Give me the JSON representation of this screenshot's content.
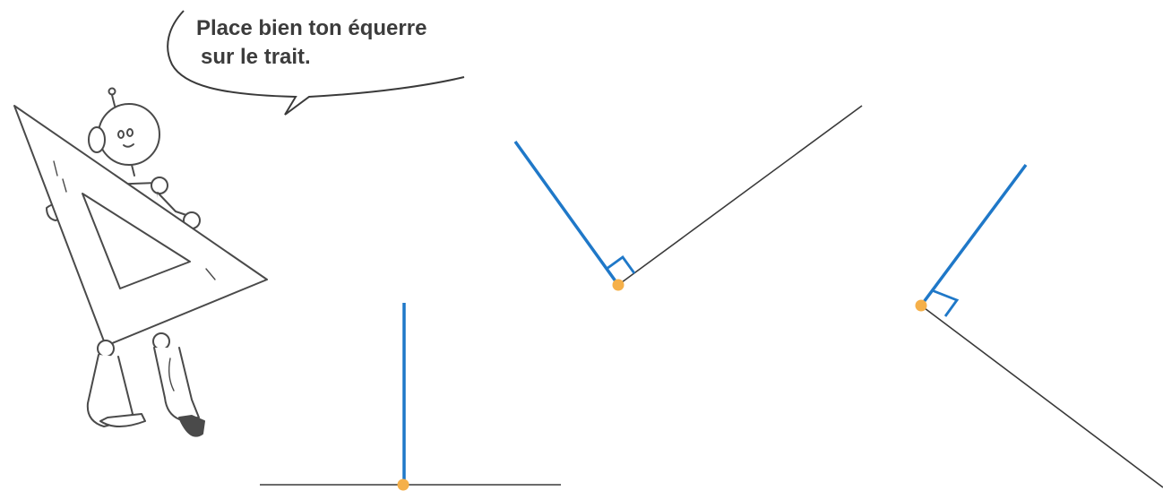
{
  "speech_bubble": {
    "line1": "Place bien ton équerre",
    "line2": "sur le trait."
  },
  "colors": {
    "perpendicular_line": "#1f78c8",
    "base_line": "#3a3a3a",
    "point": "#f5b04a",
    "drawing_ink": "#4a4a4a"
  },
  "icons": {
    "character": "robot-with-set-square-icon",
    "point": "orange-dot-icon",
    "right_angle": "right-angle-marker-icon"
  }
}
